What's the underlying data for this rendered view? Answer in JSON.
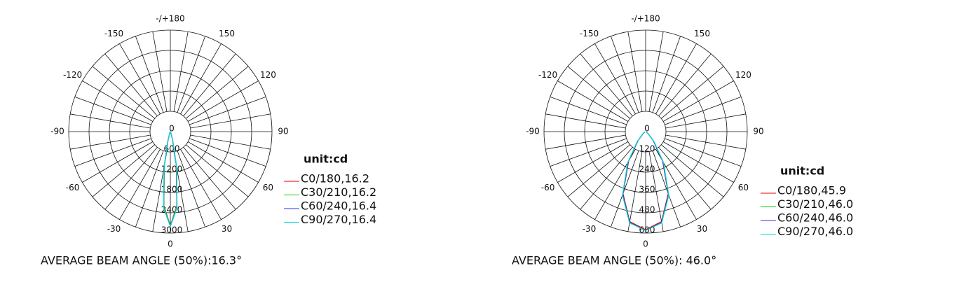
{
  "chart_data": [
    {
      "type": "polar",
      "unit": "unit:cd",
      "note": "AVERAGE BEAM ANGLE (50%):16.3°",
      "xticks": [
        0,
        30,
        60,
        90,
        120,
        150,
        {
          "value": 180,
          "label": "-/+180"
        },
        -150,
        -120,
        -90,
        -60,
        -30
      ],
      "ylim": [
        0,
        3000
      ],
      "yticks": [
        0,
        600,
        1200,
        1800,
        2400,
        3000
      ],
      "x": [
        -30,
        -25,
        -20,
        -15,
        -10,
        -5,
        0,
        5,
        10,
        15,
        20,
        25,
        30
      ],
      "series": [
        {
          "name": "C0/180,16.2",
          "color": "#e00000",
          "values": [
            0,
            10,
            60,
            250,
            1000,
            2200,
            2780,
            2200,
            1000,
            250,
            60,
            10,
            0
          ]
        },
        {
          "name": "C30/210,16.2",
          "color": "#00d000",
          "values": [
            0,
            10,
            60,
            260,
            1020,
            2220,
            2790,
            2220,
            1020,
            260,
            60,
            10,
            0
          ]
        },
        {
          "name": "C60/240,16.4",
          "color": "#3030ff",
          "values": [
            0,
            12,
            70,
            280,
            1060,
            2260,
            2800,
            2260,
            1060,
            280,
            70,
            12,
            0
          ]
        },
        {
          "name": "C90/270,16.4",
          "color": "#00d8d8",
          "values": [
            0,
            12,
            72,
            285,
            1070,
            2270,
            2800,
            2270,
            1070,
            285,
            72,
            12,
            0
          ]
        }
      ]
    },
    {
      "type": "polar",
      "unit": "unit:cd",
      "note": "AVERAGE BEAM ANGLE (50%): 46.0°",
      "xticks": [
        0,
        30,
        60,
        90,
        120,
        150,
        {
          "value": 180,
          "label": "-/+180"
        },
        -150,
        -120,
        -90,
        -60,
        -30
      ],
      "ylim": [
        0,
        600
      ],
      "yticks": [
        0,
        120,
        240,
        360,
        480,
        600
      ],
      "x": [
        -60,
        -50,
        -40,
        -30,
        -20,
        -10,
        0,
        10,
        20,
        30,
        40,
        50,
        60
      ],
      "series": [
        {
          "name": "C0/180,45.9",
          "color": "#e00000",
          "values": [
            5,
            20,
            70,
            200,
            390,
            540,
            580,
            540,
            390,
            200,
            70,
            20,
            5
          ]
        },
        {
          "name": "C30/210,46.0",
          "color": "#00d000",
          "values": [
            5,
            22,
            72,
            205,
            395,
            545,
            585,
            545,
            395,
            205,
            72,
            22,
            5
          ]
        },
        {
          "name": "C60/240,46.0",
          "color": "#3030ff",
          "values": [
            5,
            22,
            72,
            205,
            395,
            545,
            585,
            545,
            395,
            205,
            72,
            22,
            5
          ]
        },
        {
          "name": "C90/270,46.0",
          "color": "#00d8d8",
          "values": [
            6,
            24,
            78,
            212,
            400,
            548,
            585,
            548,
            400,
            212,
            78,
            24,
            6
          ]
        }
      ]
    }
  ]
}
